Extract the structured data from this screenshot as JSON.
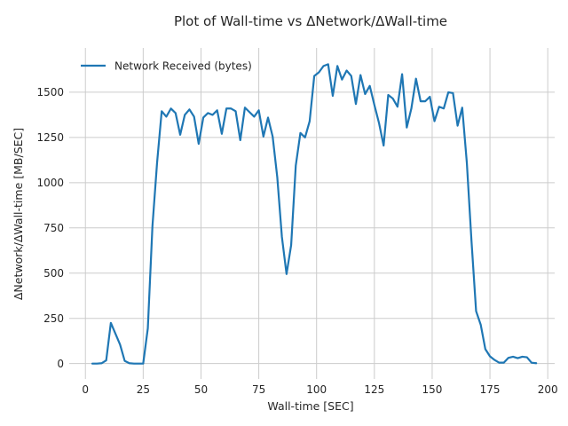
{
  "chart_data": {
    "type": "line",
    "title": "Plot of Wall-time vs ΔNetwork/ΔWall-time",
    "xlabel": "Wall-time [SEC]",
    "ylabel": "ΔNetwork/ΔWall-time [MB/SEC]",
    "xlim": [
      -7,
      203
    ],
    "ylim": [
      -85,
      1745
    ],
    "xticks": [
      0,
      25,
      50,
      75,
      100,
      125,
      150,
      175,
      200
    ],
    "xtick_labels": [
      "0",
      "25",
      "50",
      "75",
      "100",
      "125",
      "150",
      "175",
      "200"
    ],
    "yticks": [
      0,
      250,
      500,
      750,
      1000,
      1250,
      1500
    ],
    "ytick_labels": [
      "0",
      "250",
      "500",
      "750",
      "1000",
      "1250",
      "1500"
    ],
    "grid": true,
    "legend": {
      "position": "top-left"
    },
    "series": [
      {
        "name": "Network Received (bytes)",
        "color": "#1f77b4",
        "x": [
          3,
          5,
          7,
          9,
          11,
          13,
          15,
          17,
          19,
          21,
          23,
          25,
          27,
          29,
          31,
          33,
          35,
          37,
          39,
          41,
          43,
          45,
          47,
          49,
          51,
          53,
          55,
          57,
          59,
          61,
          63,
          65,
          67,
          69,
          71,
          73,
          75,
          77,
          79,
          81,
          83,
          85,
          87,
          89,
          91,
          93,
          95,
          97,
          99,
          101,
          103,
          105,
          107,
          109,
          111,
          113,
          115,
          117,
          119,
          121,
          123,
          125,
          127,
          129,
          131,
          133,
          135,
          137,
          139,
          141,
          143,
          145,
          147,
          149,
          151,
          153,
          155,
          157,
          159,
          161,
          163,
          165,
          167,
          169,
          171,
          173,
          175,
          177,
          179,
          181,
          183,
          185,
          187,
          189,
          191,
          193,
          195
        ],
        "values": [
          0,
          0,
          2,
          18,
          225,
          165,
          105,
          15,
          2,
          0,
          0,
          0,
          195,
          760,
          1110,
          1395,
          1365,
          1410,
          1385,
          1265,
          1375,
          1405,
          1365,
          1215,
          1360,
          1385,
          1375,
          1400,
          1270,
          1410,
          1410,
          1395,
          1235,
          1415,
          1390,
          1365,
          1400,
          1255,
          1360,
          1255,
          1030,
          700,
          495,
          655,
          1095,
          1275,
          1250,
          1340,
          1590,
          1610,
          1645,
          1655,
          1480,
          1645,
          1570,
          1620,
          1590,
          1435,
          1595,
          1490,
          1535,
          1430,
          1330,
          1205,
          1485,
          1465,
          1420,
          1600,
          1305,
          1410,
          1575,
          1450,
          1450,
          1475,
          1340,
          1420,
          1410,
          1500,
          1495,
          1315,
          1415,
          1110,
          680,
          290,
          215,
          80,
          40,
          20,
          5,
          5,
          32,
          38,
          30,
          38,
          35,
          5,
          2
        ]
      }
    ]
  }
}
